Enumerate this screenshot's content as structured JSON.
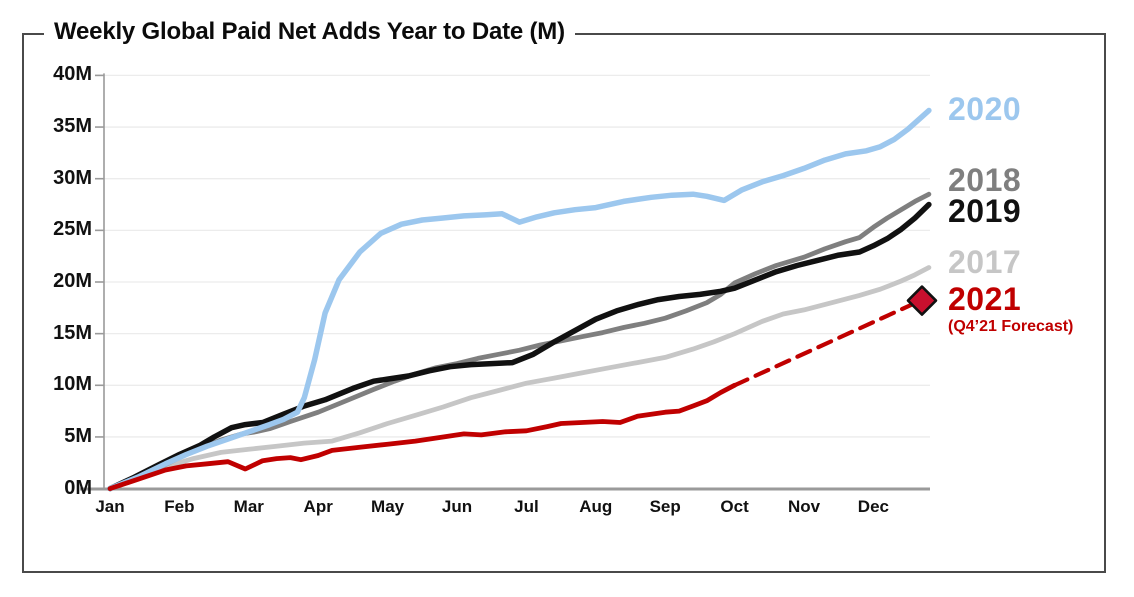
{
  "title": "Weekly Global Paid Net Adds Year to Date (M)",
  "y_axis": {
    "labels": [
      "0M",
      "5M",
      "10M",
      "15M",
      "20M",
      "25M",
      "30M",
      "35M",
      "40M"
    ],
    "min": 0,
    "max": 40,
    "step": 5
  },
  "x_axis": {
    "labels": [
      "Jan",
      "Feb",
      "Mar",
      "Apr",
      "May",
      "Jun",
      "Jul",
      "Aug",
      "Sep",
      "Oct",
      "Nov",
      "Dec"
    ]
  },
  "legend": [
    {
      "label": "2020",
      "color": "#9cc7ee"
    },
    {
      "label": "2018",
      "color": "#7f7f7f"
    },
    {
      "label": "2019",
      "color": "#111111"
    },
    {
      "label": "2017",
      "color": "#c6c6c6"
    },
    {
      "label": "2021",
      "color": "#c00000",
      "sublabel": "(Q4’21 Forecast)"
    }
  ],
  "chart_data": {
    "type": "line",
    "title": "Weekly Global Paid Net Adds Year to Date (M)",
    "x_unit": "months elapsed (0 = Jan 1, 12 = Dec 31)",
    "y_unit": "cumulative paid net adds, millions",
    "ylim": [
      0,
      40
    ],
    "grid": "horizontal, every 5M",
    "legend_position": "right",
    "series": [
      {
        "name": "2017",
        "color": "#c6c6c6",
        "line_style": "solid",
        "points": [
          [
            0,
            0
          ],
          [
            0.4,
            1.0
          ],
          [
            0.8,
            2.1
          ],
          [
            1.2,
            2.9
          ],
          [
            1.6,
            3.5
          ],
          [
            2.0,
            3.8
          ],
          [
            2.4,
            4.1
          ],
          [
            2.8,
            4.4
          ],
          [
            3.2,
            4.6
          ],
          [
            3.6,
            5.4
          ],
          [
            4.0,
            6.3
          ],
          [
            4.4,
            7.1
          ],
          [
            4.8,
            7.9
          ],
          [
            5.2,
            8.8
          ],
          [
            5.6,
            9.5
          ],
          [
            6.0,
            10.2
          ],
          [
            6.4,
            10.7
          ],
          [
            6.8,
            11.2
          ],
          [
            7.2,
            11.7
          ],
          [
            7.6,
            12.2
          ],
          [
            8.0,
            12.7
          ],
          [
            8.4,
            13.5
          ],
          [
            8.7,
            14.2
          ],
          [
            9.0,
            15.0
          ],
          [
            9.4,
            16.2
          ],
          [
            9.7,
            16.9
          ],
          [
            10.0,
            17.3
          ],
          [
            10.4,
            18.0
          ],
          [
            10.8,
            18.7
          ],
          [
            11.1,
            19.3
          ],
          [
            11.4,
            20.1
          ],
          [
            11.6,
            20.7
          ],
          [
            11.8,
            21.4
          ]
        ]
      },
      {
        "name": "2018",
        "color": "#7f7f7f",
        "line_style": "solid",
        "points": [
          [
            0,
            0
          ],
          [
            0.35,
            0.9
          ],
          [
            0.7,
            2.0
          ],
          [
            1.0,
            3.0
          ],
          [
            1.3,
            3.9
          ],
          [
            1.6,
            4.7
          ],
          [
            1.9,
            5.3
          ],
          [
            2.1,
            5.5
          ],
          [
            2.3,
            5.8
          ],
          [
            2.6,
            6.5
          ],
          [
            3.0,
            7.4
          ],
          [
            3.4,
            8.5
          ],
          [
            3.8,
            9.6
          ],
          [
            4.1,
            10.4
          ],
          [
            4.4,
            11.1
          ],
          [
            4.7,
            11.7
          ],
          [
            5.0,
            12.1
          ],
          [
            5.3,
            12.6
          ],
          [
            5.6,
            13.0
          ],
          [
            5.9,
            13.4
          ],
          [
            6.2,
            13.9
          ],
          [
            6.5,
            14.3
          ],
          [
            6.8,
            14.7
          ],
          [
            7.1,
            15.1
          ],
          [
            7.4,
            15.6
          ],
          [
            7.7,
            16.0
          ],
          [
            8.0,
            16.5
          ],
          [
            8.3,
            17.2
          ],
          [
            8.6,
            18.0
          ],
          [
            8.8,
            18.8
          ],
          [
            9.0,
            19.9
          ],
          [
            9.3,
            20.8
          ],
          [
            9.6,
            21.6
          ],
          [
            10.0,
            22.4
          ],
          [
            10.3,
            23.2
          ],
          [
            10.6,
            23.9
          ],
          [
            10.8,
            24.3
          ],
          [
            11.0,
            25.3
          ],
          [
            11.2,
            26.2
          ],
          [
            11.4,
            27.0
          ],
          [
            11.6,
            27.8
          ],
          [
            11.8,
            28.5
          ]
        ]
      },
      {
        "name": "2019",
        "color": "#111111",
        "line_style": "solid",
        "points": [
          [
            0,
            0
          ],
          [
            0.35,
            1.1
          ],
          [
            0.7,
            2.3
          ],
          [
            1.0,
            3.3
          ],
          [
            1.3,
            4.2
          ],
          [
            1.5,
            5.0
          ],
          [
            1.75,
            5.9
          ],
          [
            1.95,
            6.2
          ],
          [
            2.2,
            6.4
          ],
          [
            2.5,
            7.2
          ],
          [
            2.8,
            8.0
          ],
          [
            3.1,
            8.6
          ],
          [
            3.5,
            9.7
          ],
          [
            3.8,
            10.4
          ],
          [
            4.0,
            10.6
          ],
          [
            4.3,
            10.9
          ],
          [
            4.6,
            11.4
          ],
          [
            4.9,
            11.8
          ],
          [
            5.2,
            12.0
          ],
          [
            5.5,
            12.1
          ],
          [
            5.8,
            12.2
          ],
          [
            6.1,
            13.0
          ],
          [
            6.4,
            14.2
          ],
          [
            6.7,
            15.3
          ],
          [
            7.0,
            16.4
          ],
          [
            7.3,
            17.2
          ],
          [
            7.6,
            17.8
          ],
          [
            7.9,
            18.3
          ],
          [
            8.2,
            18.6
          ],
          [
            8.5,
            18.8
          ],
          [
            8.8,
            19.1
          ],
          [
            9.0,
            19.4
          ],
          [
            9.3,
            20.2
          ],
          [
            9.6,
            21.0
          ],
          [
            9.9,
            21.6
          ],
          [
            10.2,
            22.1
          ],
          [
            10.5,
            22.6
          ],
          [
            10.8,
            22.9
          ],
          [
            11.0,
            23.5
          ],
          [
            11.2,
            24.2
          ],
          [
            11.4,
            25.1
          ],
          [
            11.6,
            26.2
          ],
          [
            11.8,
            27.5
          ]
        ]
      },
      {
        "name": "2020",
        "color": "#9cc7ee",
        "line_style": "solid",
        "points": [
          [
            0,
            0
          ],
          [
            0.4,
            1.1
          ],
          [
            0.8,
            2.4
          ],
          [
            1.1,
            3.3
          ],
          [
            1.4,
            4.1
          ],
          [
            1.7,
            4.8
          ],
          [
            2.0,
            5.5
          ],
          [
            2.3,
            6.2
          ],
          [
            2.5,
            6.7
          ],
          [
            2.7,
            7.4
          ],
          [
            2.8,
            8.8
          ],
          [
            2.95,
            12.5
          ],
          [
            3.1,
            17.0
          ],
          [
            3.3,
            20.2
          ],
          [
            3.6,
            22.9
          ],
          [
            3.9,
            24.7
          ],
          [
            4.2,
            25.6
          ],
          [
            4.5,
            26.0
          ],
          [
            4.8,
            26.2
          ],
          [
            5.1,
            26.4
          ],
          [
            5.4,
            26.5
          ],
          [
            5.65,
            26.6
          ],
          [
            5.9,
            25.8
          ],
          [
            6.15,
            26.3
          ],
          [
            6.4,
            26.7
          ],
          [
            6.7,
            27.0
          ],
          [
            7.0,
            27.2
          ],
          [
            7.4,
            27.8
          ],
          [
            7.8,
            28.2
          ],
          [
            8.1,
            28.4
          ],
          [
            8.4,
            28.5
          ],
          [
            8.6,
            28.3
          ],
          [
            8.85,
            27.9
          ],
          [
            9.1,
            28.9
          ],
          [
            9.4,
            29.7
          ],
          [
            9.7,
            30.3
          ],
          [
            10.0,
            31.0
          ],
          [
            10.3,
            31.8
          ],
          [
            10.6,
            32.4
          ],
          [
            10.9,
            32.7
          ],
          [
            11.1,
            33.1
          ],
          [
            11.3,
            33.8
          ],
          [
            11.5,
            34.8
          ],
          [
            11.65,
            35.7
          ],
          [
            11.8,
            36.6
          ]
        ]
      },
      {
        "name": "2021",
        "color": "#c00000",
        "line_style": "solid",
        "points": [
          [
            0,
            0
          ],
          [
            0.4,
            0.9
          ],
          [
            0.8,
            1.8
          ],
          [
            1.1,
            2.2
          ],
          [
            1.4,
            2.4
          ],
          [
            1.7,
            2.6
          ],
          [
            1.95,
            1.9
          ],
          [
            2.2,
            2.7
          ],
          [
            2.4,
            2.9
          ],
          [
            2.6,
            3.0
          ],
          [
            2.75,
            2.8
          ],
          [
            3.0,
            3.2
          ],
          [
            3.2,
            3.7
          ],
          [
            3.6,
            4.0
          ],
          [
            4.0,
            4.3
          ],
          [
            4.4,
            4.6
          ],
          [
            4.8,
            5.0
          ],
          [
            5.1,
            5.3
          ],
          [
            5.35,
            5.2
          ],
          [
            5.7,
            5.5
          ],
          [
            6.0,
            5.6
          ],
          [
            6.3,
            6.0
          ],
          [
            6.5,
            6.3
          ],
          [
            6.8,
            6.4
          ],
          [
            7.1,
            6.5
          ],
          [
            7.35,
            6.4
          ],
          [
            7.6,
            7.0
          ],
          [
            7.8,
            7.2
          ],
          [
            8.0,
            7.4
          ],
          [
            8.2,
            7.5
          ],
          [
            8.4,
            8.0
          ],
          [
            8.6,
            8.5
          ],
          [
            8.8,
            9.3
          ],
          [
            9.0,
            10.0
          ]
        ]
      },
      {
        "name": "2021 forecast",
        "color": "#c00000",
        "line_style": "dashed",
        "points": [
          [
            9.0,
            10.0
          ],
          [
            11.68,
            18.2
          ]
        ]
      }
    ],
    "forecast_marker": {
      "series": "2021",
      "x": 11.7,
      "y": 18.2,
      "shape": "diamond",
      "fill": "#c8102e",
      "outline": "#111111",
      "label": "(Q4’21 Forecast)"
    }
  },
  "colors": {
    "grid": "#ececec",
    "axis": "#9a9a9a",
    "frame": "#4a4a4a",
    "text": "#111111"
  }
}
